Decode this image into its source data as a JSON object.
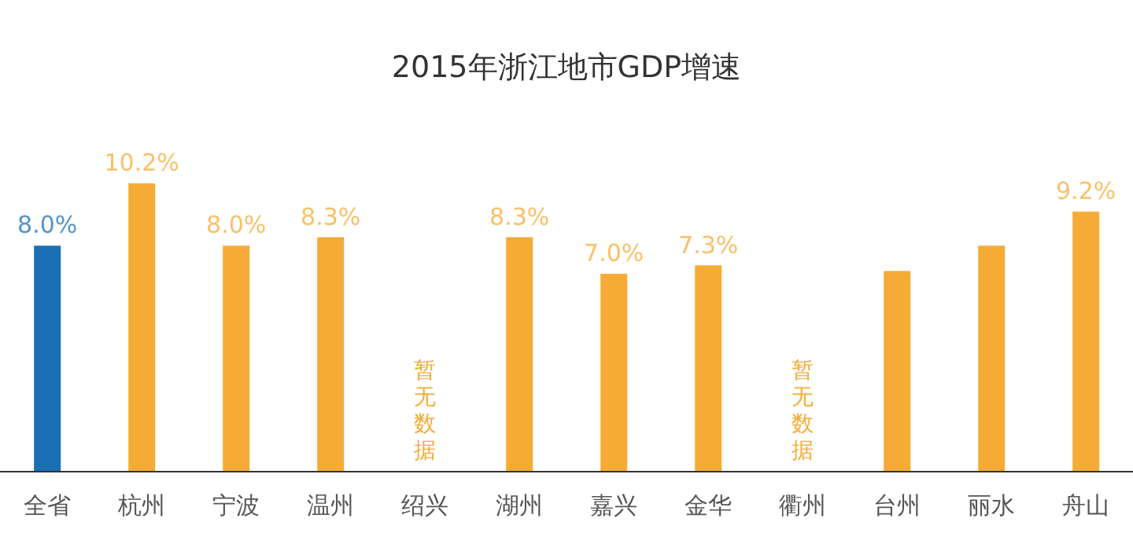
{
  "chart_data": {
    "type": "bar",
    "title": "2015年浙江地市GDP增速",
    "categories": [
      "全省",
      "杭州",
      "宁波",
      "温州",
      "绍兴",
      "湖州",
      "嘉兴",
      "金华",
      "衢州",
      "台州",
      "丽水",
      "舟山"
    ],
    "values": [
      8.0,
      10.2,
      8.0,
      8.3,
      null,
      8.3,
      7.0,
      7.3,
      null,
      7.1,
      8.0,
      9.2
    ],
    "value_labels": [
      "8.0%",
      "10.2%",
      "8.0%",
      "8.3%",
      null,
      "8.3%",
      "7.0%",
      "7.3%",
      null,
      null,
      null,
      "9.2%"
    ],
    "colors": [
      "#1a6fb5",
      "#f5ab35",
      "#f5ab35",
      "#f5ab35",
      "#f5ab35",
      "#f5ab35",
      "#f5ab35",
      "#f5ab35",
      "#f5ab35",
      "#f5ab35",
      "#f5ab35",
      "#f5ab35"
    ],
    "annotations": [
      "暂无数据",
      "暂无数据"
    ],
    "tick_labels": "x",
    "grid": false
  }
}
